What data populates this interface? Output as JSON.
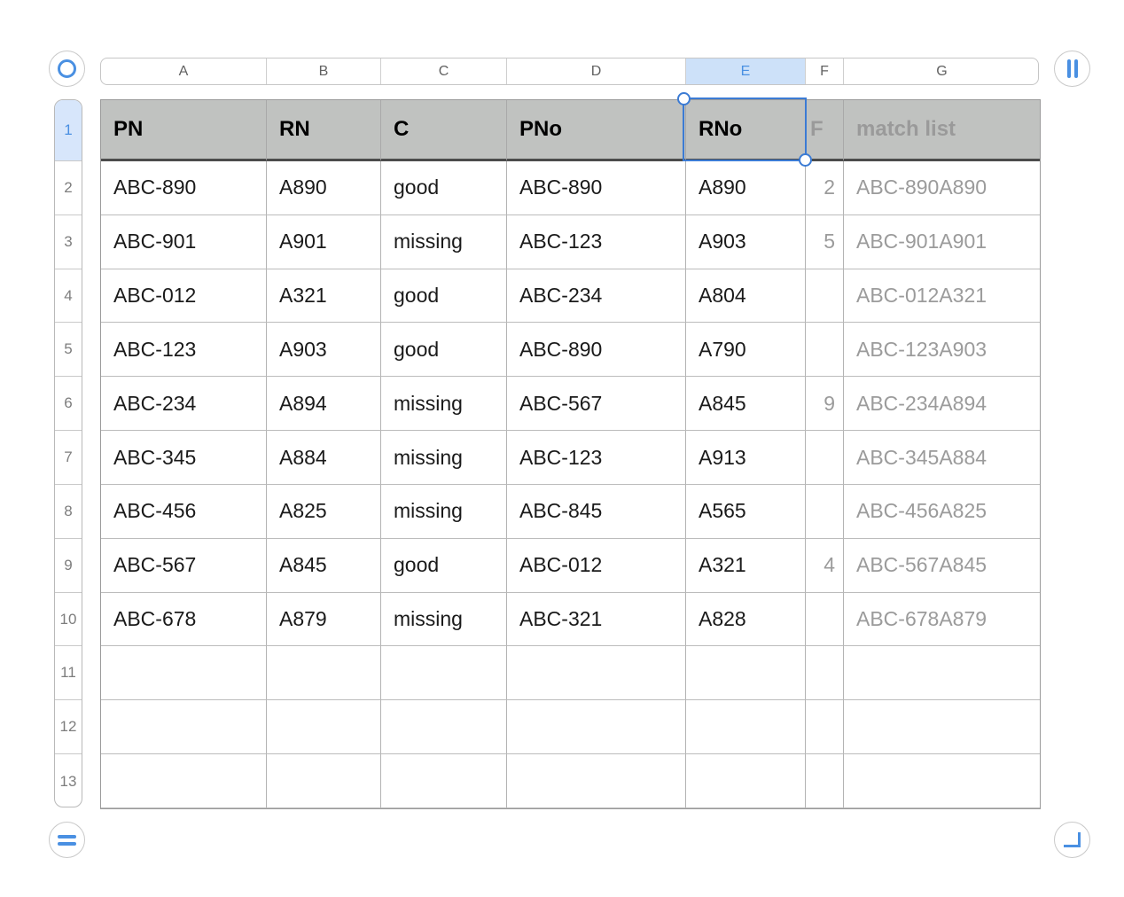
{
  "colors": {
    "accent_blue": "#4A90E2",
    "selection_border": "#3B7BD4",
    "selected_header_fill": "#CDE1F9",
    "selected_row_fill": "#D7E6FB",
    "table_header_fill": "#C0C2C0",
    "muted_text": "#9B9B9B"
  },
  "icons": {
    "table_select": "circle-ring",
    "add_column": "double-vertical-bar",
    "add_row": "double-horizontal-bar",
    "resize_table": "bottom-right-corner"
  },
  "column_bar": {
    "letters": [
      "A",
      "B",
      "C",
      "D",
      "E",
      "F",
      "G"
    ],
    "selected": "E"
  },
  "row_bar": {
    "numbers": [
      "1",
      "2",
      "3",
      "4",
      "5",
      "6",
      "7",
      "8",
      "9",
      "10",
      "11",
      "12",
      "13"
    ],
    "selected": "1"
  },
  "table": {
    "headers": [
      {
        "text": "PN",
        "muted": false
      },
      {
        "text": "RN",
        "muted": false
      },
      {
        "text": "C",
        "muted": false
      },
      {
        "text": "PNo",
        "muted": false
      },
      {
        "text": "RNo",
        "muted": false
      },
      {
        "text": "F",
        "muted": true
      },
      {
        "text": "match list",
        "muted": true
      }
    ],
    "rows": [
      [
        "ABC-890",
        "A890",
        "good",
        "ABC-890",
        "A890",
        "2",
        "ABC-890A890"
      ],
      [
        "ABC-901",
        "A901",
        "missing",
        "ABC-123",
        "A903",
        "5",
        "ABC-901A901"
      ],
      [
        "ABC-012",
        "A321",
        "good",
        "ABC-234",
        "A804",
        "",
        "ABC-012A321"
      ],
      [
        "ABC-123",
        "A903",
        "good",
        "ABC-890",
        "A790",
        "",
        "ABC-123A903"
      ],
      [
        "ABC-234",
        "A894",
        "missing",
        "ABC-567",
        "A845",
        "9",
        "ABC-234A894"
      ],
      [
        "ABC-345",
        "A884",
        "missing",
        "ABC-123",
        "A913",
        "",
        "ABC-345A884"
      ],
      [
        "ABC-456",
        "A825",
        "missing",
        "ABC-845",
        "A565",
        "",
        "ABC-456A825"
      ],
      [
        "ABC-567",
        "A845",
        "good",
        "ABC-012",
        "A321",
        "4",
        "ABC-567A845"
      ],
      [
        "ABC-678",
        "A879",
        "missing",
        "ABC-321",
        "A828",
        "",
        "ABC-678A879"
      ],
      [
        "",
        "",
        "",
        "",
        "",
        "",
        ""
      ],
      [
        "",
        "",
        "",
        "",
        "",
        "",
        ""
      ],
      [
        "",
        "",
        "",
        "",
        "",
        "",
        ""
      ]
    ],
    "selected_cell": "E1",
    "selected_cell_value": "RNo"
  }
}
